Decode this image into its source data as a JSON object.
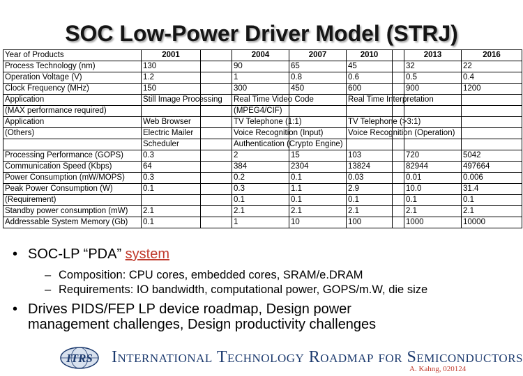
{
  "title": "SOC Low-Power Driver Model (STRJ)",
  "table": {
    "rows": [
      [
        "Year of Products",
        "2001",
        "",
        "2004",
        "2007",
        "2010",
        "",
        "2013",
        "2016"
      ],
      [
        "Process Technology (nm)",
        "130",
        "",
        "90",
        "65",
        "45",
        "",
        "32",
        "22"
      ],
      [
        "Operation Voltage (V)",
        "1.2",
        "",
        "1",
        "0.8",
        "0.6",
        "",
        "0.5",
        "0.4"
      ],
      [
        "Clock Frequency (MHz)",
        "150",
        "",
        "300",
        "450",
        "600",
        "",
        "900",
        "1200"
      ],
      [
        "Application",
        "Still Image Processing",
        "",
        "Real Time Video Code",
        "",
        "Real Time Interpretation",
        "",
        "",
        ""
      ],
      [
        " (MAX performance required)",
        "",
        "",
        "(MPEG4/CIF)",
        "",
        "",
        "",
        "",
        ""
      ],
      [
        "Application",
        "Web Browser",
        "",
        "TV Telephone (1:1)",
        "",
        "TV Telephone (>3:1)",
        "",
        "",
        ""
      ],
      [
        "(Others)",
        "Electric Mailer",
        "",
        "Voice Recognition (Input)",
        "",
        "Voice Recognition (Operation)",
        "",
        "",
        ""
      ],
      [
        "",
        "Scheduler",
        "",
        "Authentication (Crypto Engine)",
        "",
        "",
        "",
        "",
        ""
      ],
      [
        "Processing Performance (GOPS)",
        "0.3",
        "",
        "2",
        "15",
        "103",
        "",
        "720",
        "5042"
      ],
      [
        "Communication Speed (Kbps)",
        "64",
        "",
        "384",
        "2304",
        "13824",
        "",
        "82944",
        "497664"
      ],
      [
        "Power Consumption (mW/MOPS)",
        "0.3",
        "",
        "0.2",
        "0.1",
        "0.03",
        "",
        "0.01",
        "0.006"
      ],
      [
        "Peak Power Consumption (W)",
        "0.1",
        "",
        "0.3",
        "1.1",
        "2.9",
        "",
        "10.0",
        "31.4"
      ],
      [
        "(Requirement)",
        "",
        "",
        "0.1",
        "0.1",
        "0.1",
        "",
        "0.1",
        "0.1"
      ],
      [
        "Standby power consumption (mW)",
        "2.1",
        "",
        "2.1",
        "2.1",
        "2.1",
        "",
        "2.1",
        "2.1"
      ],
      [
        "Addressable System Memory  (Gb)",
        "0.1",
        "",
        "1",
        "10",
        "100",
        "",
        "1000",
        "10000"
      ]
    ]
  },
  "bullets": {
    "b1_prefix": "SOC-LP “PDA” ",
    "b1_accent": "system",
    "sub1": "Composition:  CPU cores, embedded cores, SRAM/e.DRAM",
    "sub2": "Requirements:  IO bandwidth, computational power, GOPS/m.W, die size",
    "b2_line1": "Drives PIDS/FEP LP device roadmap, Design power",
    "b2_line2": "management challenges, Design productivity challenges",
    "dash": "–",
    "dot": "•"
  },
  "footer": {
    "logo_text": "ITRS",
    "org_name": "International Technology Roadmap for Semiconductors",
    "author": "A. Kahng, 020124"
  },
  "colors": {
    "accent": "#c0392b",
    "brand": "#1c3a6e"
  }
}
